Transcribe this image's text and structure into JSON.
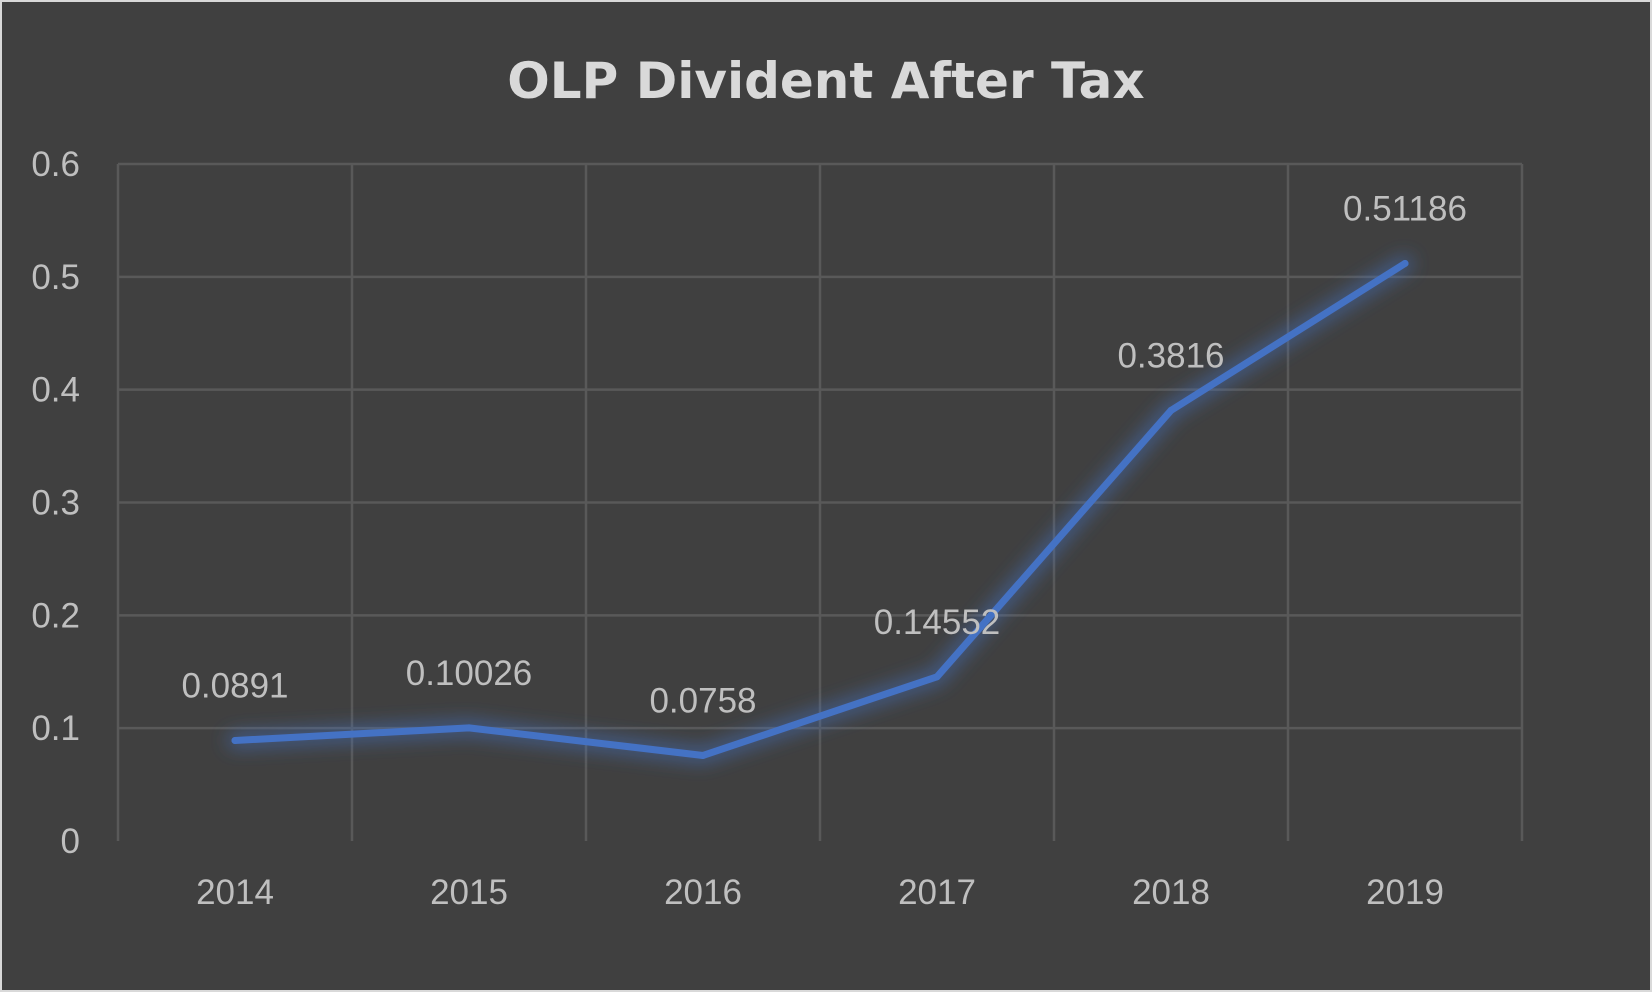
{
  "chart_data": {
    "type": "line",
    "title": "OLP Divident After Tax",
    "xlabel": "",
    "ylabel": "",
    "categories": [
      "2014",
      "2015",
      "2016",
      "2017",
      "2018",
      "2019"
    ],
    "series": [
      {
        "values": [
          0.0891,
          0.10026,
          0.0758,
          0.14552,
          0.3816,
          0.51186
        ],
        "data_labels": [
          "0.0891",
          "0.10026",
          "0.0758",
          "0.14552",
          "0.3816",
          "0.51186"
        ],
        "color": "#4472c4"
      }
    ],
    "ylim": [
      0,
      0.6
    ],
    "y_ticks": [
      "0",
      "0.1",
      "0.2",
      "0.3",
      "0.4",
      "0.5",
      "0.6"
    ],
    "grid": true,
    "legend": "none",
    "background_color": "#404040",
    "text_color": "#bfbfbf",
    "title_color": "#d9d9d9",
    "grid_color": "#595959"
  }
}
